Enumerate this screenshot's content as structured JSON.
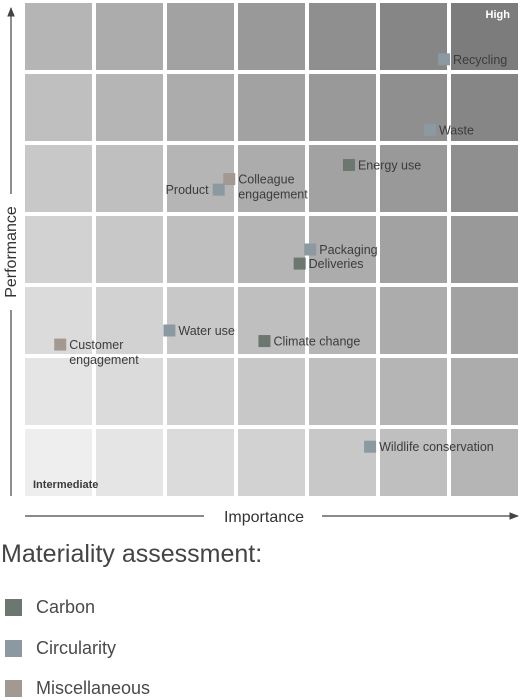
{
  "chart_data": {
    "type": "scatter",
    "title": "Materiality assessment:",
    "xlabel": "Importance",
    "ylabel": "Performance",
    "xlim": [
      0,
      7
    ],
    "ylim": [
      0,
      7
    ],
    "grid": "7x7 tiles, shading darkens toward top-right",
    "corner_labels": {
      "high": "High",
      "low": "Intermediate"
    },
    "categories": [
      {
        "name": "Carbon",
        "color": "#6b776f"
      },
      {
        "name": "Circularity",
        "color": "#8a9aa0"
      },
      {
        "name": "Miscellaneous",
        "color": "#a29a92"
      }
    ],
    "points": [
      {
        "label": [
          "Recycling"
        ],
        "category": "Circularity",
        "x": 5.95,
        "y": 6.2,
        "label_pos": "right"
      },
      {
        "label": [
          "Waste"
        ],
        "category": "Circularity",
        "x": 5.75,
        "y": 5.2,
        "label_pos": "right"
      },
      {
        "label": [
          "Energy use"
        ],
        "category": "Carbon",
        "x": 4.6,
        "y": 4.7,
        "label_pos": "right"
      },
      {
        "label": [
          "Colleague",
          "engagement"
        ],
        "category": "Miscellaneous",
        "x": 2.9,
        "y": 4.5,
        "label_pos": "right"
      },
      {
        "label": [
          "Product"
        ],
        "category": "Circularity",
        "x": 2.75,
        "y": 4.35,
        "label_pos": "left"
      },
      {
        "label": [
          "Packaging"
        ],
        "category": "Circularity",
        "x": 4.05,
        "y": 3.5,
        "label_pos": "right"
      },
      {
        "label": [
          "Deliveries"
        ],
        "category": "Carbon",
        "x": 3.9,
        "y": 3.3,
        "label_pos": "right"
      },
      {
        "label": [
          "Water use"
        ],
        "category": "Circularity",
        "x": 2.05,
        "y": 2.35,
        "label_pos": "right"
      },
      {
        "label": [
          "Climate change"
        ],
        "category": "Carbon",
        "x": 3.4,
        "y": 2.2,
        "label_pos": "right"
      },
      {
        "label": [
          "Customer",
          "engagement"
        ],
        "category": "Miscellaneous",
        "x": 0.5,
        "y": 2.15,
        "label_pos": "right"
      },
      {
        "label": [
          "Wildlife conservation"
        ],
        "category": "Circularity",
        "x": 4.9,
        "y": 0.7,
        "label_pos": "right"
      }
    ]
  },
  "legend_title": "Materiality assessment:"
}
